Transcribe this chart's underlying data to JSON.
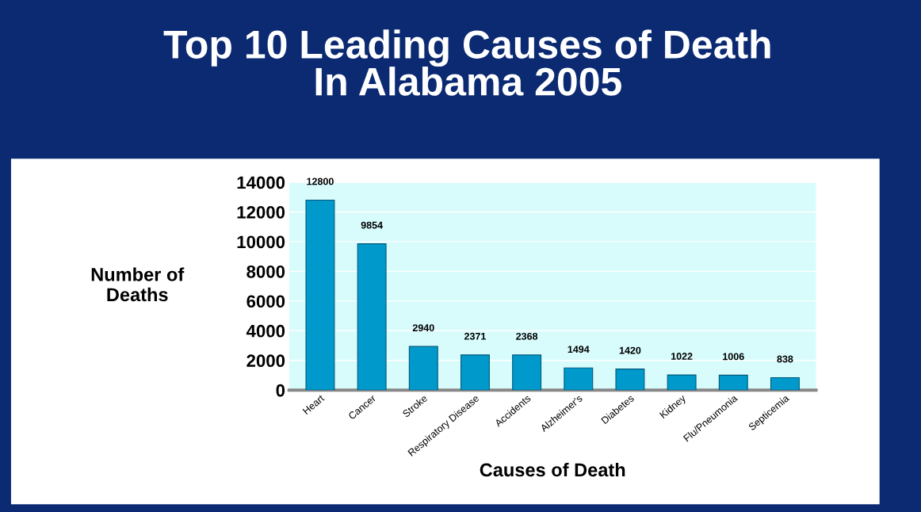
{
  "chart_data": {
    "type": "bar",
    "title": "Top 10 Leading Causes of Death\nIn Alabama 2005",
    "xlabel": "Causes of Death",
    "ylabel": "Number of\nDeaths",
    "categories": [
      "Heart",
      "Cancer",
      "Stroke",
      "Respiratory Disease",
      "Accidents",
      "Alzheimer's",
      "Diabetes",
      "Kidney",
      "Flu/Pneumonia",
      "Septicemia"
    ],
    "values": [
      12800,
      9854,
      2940,
      2371,
      2368,
      1494,
      1420,
      1022,
      1006,
      838
    ],
    "color": "#0099cc",
    "ylim": [
      0,
      14000
    ],
    "yticks": [
      0,
      2000,
      4000,
      6000,
      8000,
      10000,
      12000,
      14000
    ],
    "grid": "y",
    "data_labels": true
  }
}
